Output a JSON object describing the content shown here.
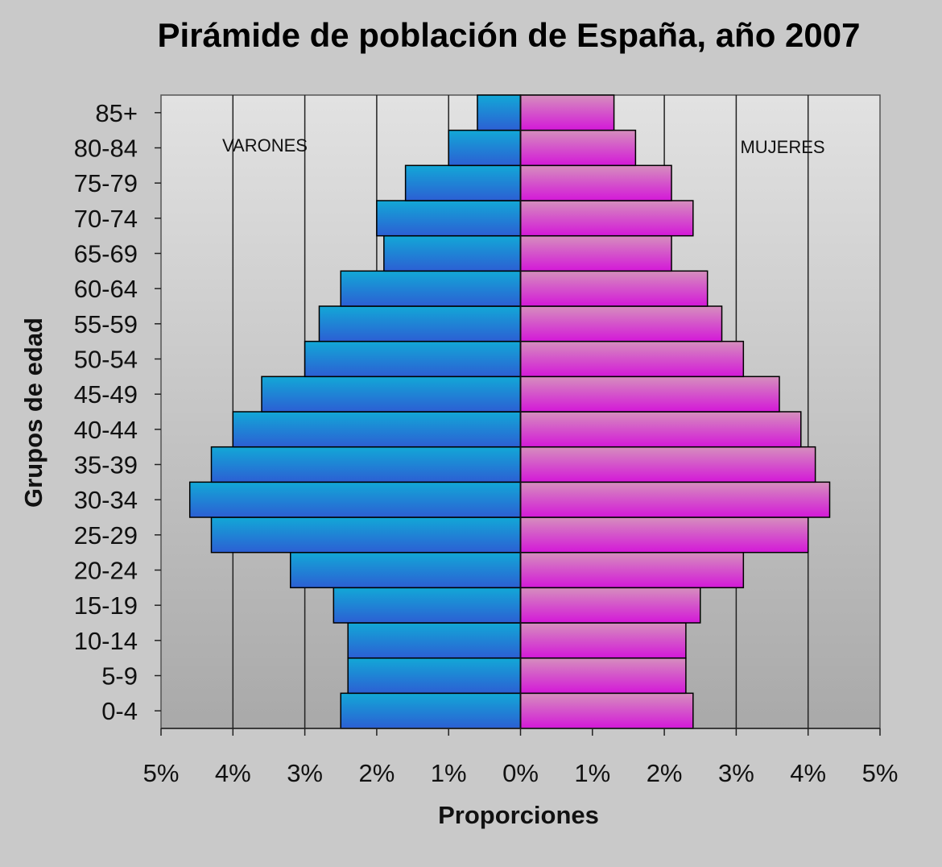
{
  "chart_data": {
    "type": "bar",
    "orientation": "horizontal",
    "title": "Pirámide de población de España, año 2007",
    "xlabel": "Proporciones",
    "ylabel": "Grupos de edad",
    "xlim": [
      -5,
      5
    ],
    "x_ticks": [
      -5,
      -4,
      -3,
      -2,
      -1,
      0,
      1,
      2,
      3,
      4,
      5
    ],
    "x_tick_labels": [
      "5%",
      "4%",
      "3%",
      "2%",
      "1%",
      "0%",
      "1%",
      "2%",
      "3%",
      "4%",
      "5%"
    ],
    "grid": "vertical",
    "categories": [
      "0-4",
      "5-9",
      "10-14",
      "15-19",
      "20-24",
      "25-29",
      "30-34",
      "35-39",
      "40-44",
      "45-49",
      "50-54",
      "55-59",
      "60-64",
      "65-69",
      "70-74",
      "75-79",
      "80-84",
      "85+"
    ],
    "series": [
      {
        "name": "VARONES",
        "side": "left",
        "color": "#1fa0d8",
        "values": [
          2.5,
          2.4,
          2.4,
          2.6,
          3.2,
          4.3,
          4.6,
          4.3,
          4.0,
          3.6,
          3.0,
          2.8,
          2.5,
          1.9,
          2.0,
          1.6,
          1.0,
          0.6
        ]
      },
      {
        "name": "MUJERES",
        "side": "right",
        "color": "#d45fc4",
        "values": [
          2.4,
          2.3,
          2.3,
          2.5,
          3.1,
          4.0,
          4.3,
          4.1,
          3.9,
          3.6,
          3.1,
          2.8,
          2.6,
          2.1,
          2.4,
          2.1,
          1.6,
          1.3
        ]
      }
    ]
  }
}
